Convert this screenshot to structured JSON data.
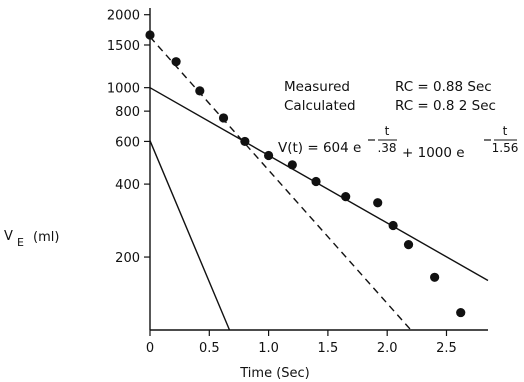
{
  "chart_data": {
    "type": "scatter",
    "title": "",
    "xlabel": "Time (Sec)",
    "ylabel_main": "V",
    "ylabel_sub": "E",
    "ylabel_unit": "(ml)",
    "y_scale": "log",
    "xlim": [
      0,
      2.85
    ],
    "ylim": [
      100,
      2300
    ],
    "x_ticks": [
      0,
      0.5,
      1.0,
      1.5,
      2.0,
      2.5
    ],
    "x_tick_labels": [
      "0",
      "0.5",
      "1.0",
      "1.5",
      "2.0",
      "2.5"
    ],
    "y_ticks": [
      200,
      400,
      600,
      800,
      1000,
      1500,
      2000
    ],
    "y_tick_labels": [
      "200",
      "400",
      "600",
      "800",
      "1000",
      "1500",
      "2000"
    ],
    "grid": false,
    "series": [
      {
        "kind": "points",
        "points": [
          [
            0,
            1650
          ],
          [
            0.22,
            1280
          ],
          [
            0.42,
            970
          ],
          [
            0.62,
            750
          ],
          [
            0.8,
            600
          ],
          [
            1.0,
            525
          ],
          [
            1.2,
            480
          ],
          [
            1.4,
            410
          ],
          [
            1.65,
            355
          ],
          [
            1.92,
            335
          ],
          [
            2.05,
            270
          ],
          [
            2.18,
            225
          ],
          [
            2.4,
            165
          ],
          [
            2.62,
            118
          ]
        ]
      },
      {
        "kind": "dashed-line",
        "points": [
          [
            0,
            1620
          ],
          [
            2.2,
            100
          ]
        ]
      },
      {
        "kind": "solid-line",
        "points": [
          [
            0,
            1000
          ],
          [
            2.85,
            160
          ]
        ]
      },
      {
        "kind": "solid-line",
        "points": [
          [
            0,
            604
          ],
          [
            0.67,
            100
          ]
        ]
      }
    ],
    "annotations": {
      "measured_label": "Measured",
      "measured_value": "RC = 0.88 Sec",
      "calculated_label": "Calculated",
      "calculated_value": "RC = 0.8 2 Sec",
      "equation_start": "V(t) = 604 e",
      "equation_exp1_num": "t",
      "equation_exp1_den": ".38",
      "equation_mid": "+ 1000 e",
      "equation_exp2_num": "t",
      "equation_exp2_den": "1.56"
    }
  }
}
